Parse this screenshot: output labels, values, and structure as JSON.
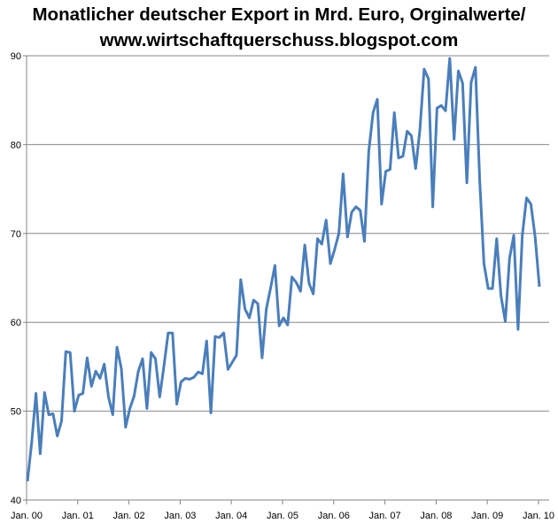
{
  "chart_data": {
    "type": "line",
    "title": [
      "Monatlicher deutscher Export in Mrd. Euro, Orginalwerte/",
      "www.wirtschaftquerschuss.blogspot.com"
    ],
    "xlabel": "",
    "ylabel": "",
    "ylim": [
      40,
      90
    ],
    "yticks": [
      "40",
      "50",
      "60",
      "70",
      "80",
      "90"
    ],
    "xticks": [
      "Jan. 00",
      "Jan. 01",
      "Jan. 02",
      "Jan. 03",
      "Jan. 04",
      "Jan. 05",
      "Jan. 06",
      "Jan. 07",
      "Jan. 08",
      "Jan. 09",
      "Jan. 10"
    ],
    "grid": "horizontal",
    "legend": "none",
    "color": "#4a7ebb",
    "x_start": "Jan. 00",
    "x_frequency": "monthly",
    "values": [
      42.1,
      46.5,
      52.0,
      45.2,
      52.1,
      49.6,
      49.7,
      47.2,
      48.9,
      56.7,
      56.6,
      50.0,
      51.8,
      52.0,
      56.0,
      52.8,
      54.5,
      53.7,
      55.3,
      51.6,
      49.6,
      57.2,
      54.8,
      48.2,
      50.3,
      51.7,
      54.5,
      55.9,
      50.3,
      56.6,
      55.9,
      51.6,
      55.1,
      58.8,
      58.8,
      50.8,
      53.3,
      53.7,
      53.6,
      53.8,
      54.4,
      54.2,
      57.9,
      49.8,
      58.4,
      58.3,
      58.8,
      54.7,
      55.5,
      56.3,
      64.8,
      61.5,
      60.5,
      62.5,
      62.1,
      56.0,
      61.5,
      63.9,
      66.4,
      59.6,
      60.5,
      59.7,
      65.1,
      64.5,
      63.5,
      68.7,
      64.4,
      63.2,
      69.4,
      68.8,
      71.5,
      66.6,
      68.2,
      70.0,
      76.7,
      69.6,
      72.4,
      73.0,
      72.6,
      69.1,
      79.2,
      83.6,
      85.1,
      73.3,
      77.0,
      77.2,
      83.6,
      78.5,
      78.7,
      81.5,
      81.0,
      77.3,
      81.7,
      88.5,
      87.4,
      73.0,
      84.1,
      84.4,
      83.8,
      89.7,
      80.6,
      88.3,
      86.9,
      75.7,
      87.0,
      88.7,
      76.0,
      66.6,
      63.8,
      63.8,
      69.4,
      63.0,
      60.1,
      67.2,
      69.8,
      59.2,
      69.8,
      74.0,
      73.3,
      69.6,
      64.0
    ]
  }
}
